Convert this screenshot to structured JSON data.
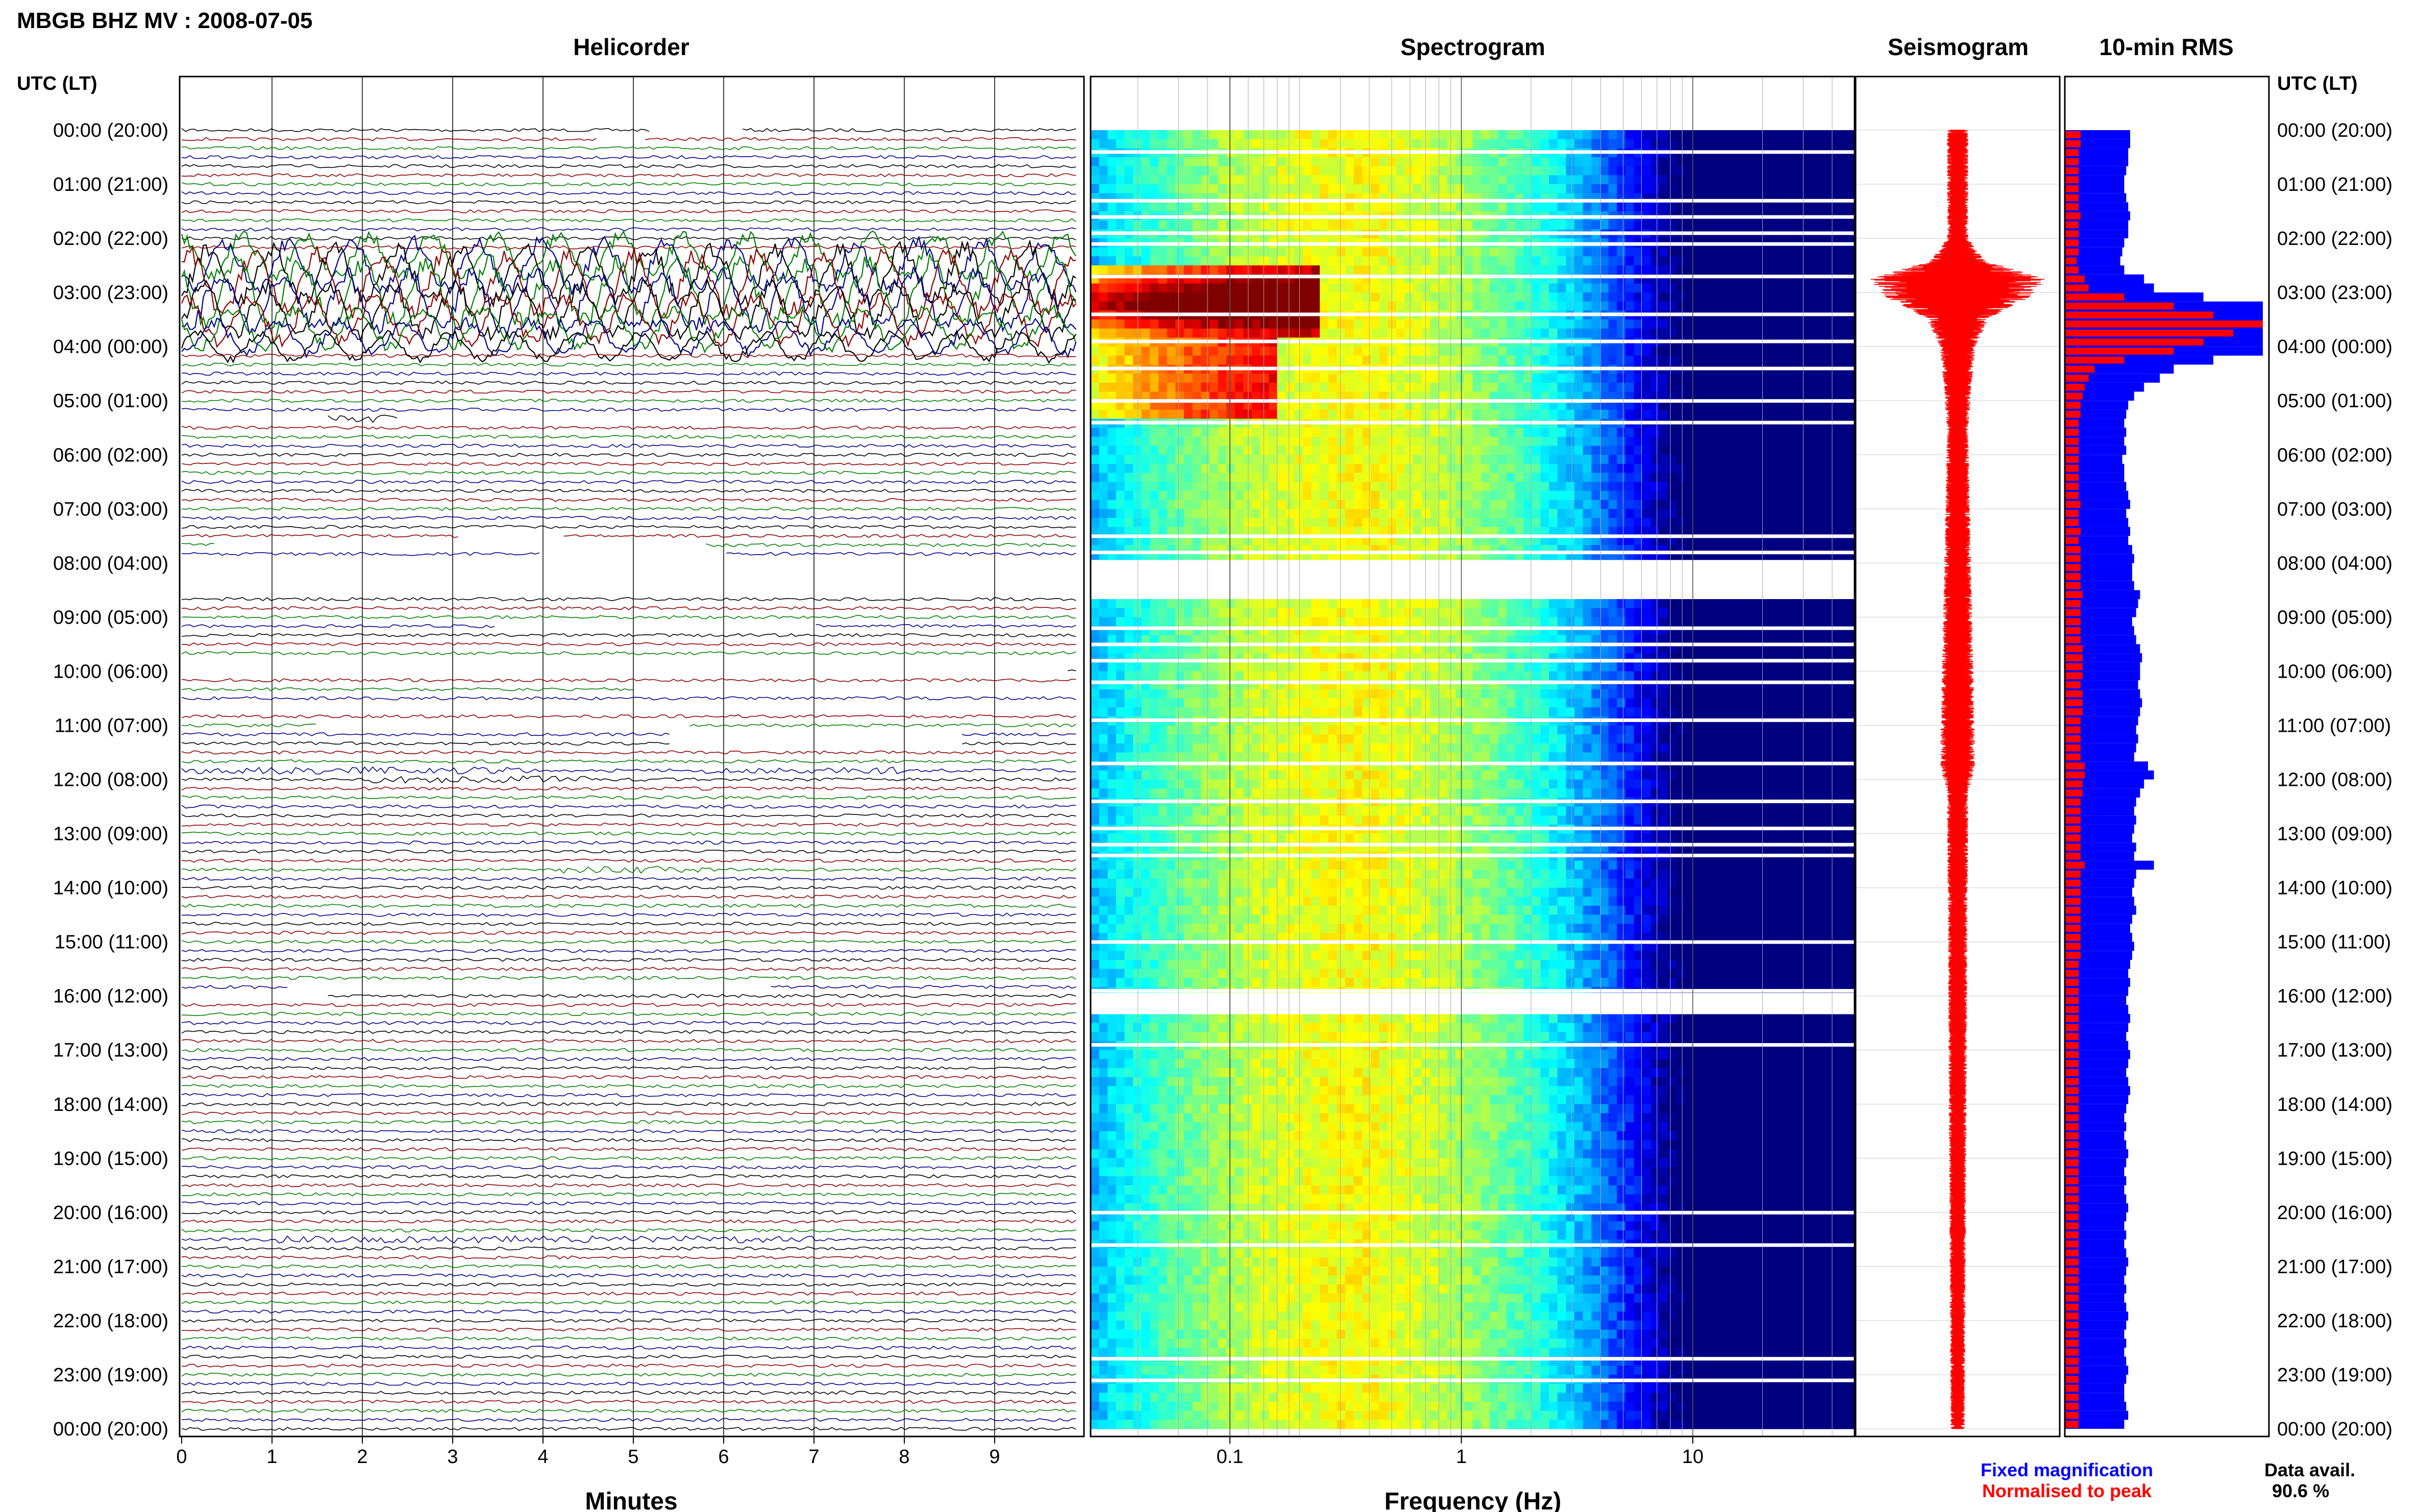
{
  "header": {
    "title": "MBGB BHZ MV : 2008-07-05"
  },
  "colors": {
    "helicorder_traces": [
      "#000000",
      "#8b0000",
      "#007f00",
      "#00008b"
    ],
    "rms_fixed": "#0000ff",
    "rms_normalised": "#ff0000",
    "seismogram": "#ff0000"
  },
  "axis_labels": {
    "left_header": "UTC (LT)",
    "right_header": "UTC (LT)",
    "time_ticks": [
      "00:00 (20:00)",
      "01:00 (21:00)",
      "02:00 (22:00)",
      "03:00 (23:00)",
      "04:00 (00:00)",
      "05:00 (01:00)",
      "06:00 (02:00)",
      "07:00 (03:00)",
      "08:00 (04:00)",
      "09:00 (05:00)",
      "10:00 (06:00)",
      "11:00 (07:00)",
      "12:00 (08:00)",
      "13:00 (09:00)",
      "14:00 (10:00)",
      "15:00 (11:00)",
      "16:00 (12:00)",
      "17:00 (13:00)",
      "18:00 (14:00)",
      "19:00 (15:00)",
      "20:00 (16:00)",
      "21:00 (17:00)",
      "22:00 (18:00)",
      "23:00 (19:00)",
      "00:00 (20:00)"
    ]
  },
  "panels": {
    "helicorder": {
      "title": "Helicorder",
      "xlabel": "Minutes",
      "ticks": [
        "0",
        "1",
        "2",
        "3",
        "4",
        "5",
        "6",
        "7",
        "8",
        "9"
      ]
    },
    "spectrogram": {
      "title": "Spectrogram",
      "xlabel": "Frequency (Hz)",
      "ticks": [
        "0.1",
        "1",
        "10"
      ]
    },
    "seismogram": {
      "title": "Seismogram"
    },
    "rms": {
      "title": "10-min RMS"
    }
  },
  "legend": {
    "fixed": "Fixed magnification",
    "normalised": "Normalised to peak"
  },
  "data_availability": {
    "label": "Data avail.",
    "value": "90.6 %"
  },
  "chart_data": [
    {
      "type": "line",
      "name": "helicorder",
      "title": "Helicorder",
      "xlabel": "Minutes",
      "xlim": [
        0,
        10
      ],
      "rows_per_hour": 6,
      "hours": 24,
      "active_hours": [
        2.25,
        4.0
      ],
      "gaps": [
        {
          "hour": 0.0,
          "from_min": 5.2,
          "to_min": 6.2
        },
        {
          "hour": 0.17,
          "from_min": 4.6,
          "to_min": 5.1
        },
        {
          "hour": 5.33,
          "from_min": 0,
          "to_min": 1.6
        },
        {
          "hour": 5.33,
          "from_min": 2.4,
          "to_min": 10
        },
        {
          "hour": 7.5,
          "from_min": 3.1,
          "to_min": 4.2
        },
        {
          "hour": 7.67,
          "from_min": 0.4,
          "to_min": 5.8
        },
        {
          "hour": 7.83,
          "from_min": 4.0,
          "to_min": 6.0
        },
        {
          "hour": 8.0,
          "from_min": 0,
          "to_min": 10
        },
        {
          "hour": 8.17,
          "from_min": 0,
          "to_min": 10
        },
        {
          "hour": 8.33,
          "from_min": 0,
          "to_min": 10
        },
        {
          "hour": 8.5,
          "from_min": 0,
          "to_min": 10
        },
        {
          "hour": 9.17,
          "from_min": 3.5,
          "to_min": 7.0
        },
        {
          "hour": 9.83,
          "from_min": 0,
          "to_min": 10
        },
        {
          "hour": 10.0,
          "from_min": 0,
          "to_min": 9.8
        },
        {
          "hour": 10.33,
          "from_min": 5.0,
          "to_min": 10
        },
        {
          "hour": 10.67,
          "from_min": 0,
          "to_min": 10
        },
        {
          "hour": 11.0,
          "from_min": 1.5,
          "to_min": 5.6
        },
        {
          "hour": 11.17,
          "from_min": 5.4,
          "to_min": 8.6
        },
        {
          "hour": 11.33,
          "from_min": 5.4,
          "to_min": 8.6
        },
        {
          "hour": 15.83,
          "from_min": 1.2,
          "to_min": 6.5
        },
        {
          "hour": 16.0,
          "from_min": 0,
          "to_min": 1.6
        }
      ],
      "events": [
        {
          "hour": 5.33,
          "from_min": 1.6,
          "to_min": 2.4
        },
        {
          "hour": 11.83,
          "from_min": 0,
          "to_min": 4.0
        },
        {
          "hour": 11.83,
          "from_min": 5.8,
          "to_min": 8.0
        },
        {
          "hour": 12.0,
          "from_min": 2.0,
          "to_min": 4.5
        },
        {
          "hour": 13.67,
          "from_min": 4.1,
          "to_min": 5.9
        },
        {
          "hour": 20.5,
          "from_min": 1.0,
          "to_min": 7.0
        }
      ]
    },
    {
      "type": "heatmap",
      "name": "spectrogram",
      "title": "Spectrogram",
      "xlabel": "Frequency (Hz)",
      "x_scale": "log",
      "xlim": [
        0.025,
        50
      ],
      "ylim_hours": [
        0,
        24
      ],
      "colormap": "jet",
      "peak_freq_hz": 0.4,
      "strong_low_freq_hours": [
        2.5,
        3.8
      ],
      "missing_rows_hours": [
        0.4,
        1.3,
        1.6,
        1.9,
        2.1,
        2.7,
        3.4,
        3.9,
        4.4,
        5.0,
        5.4,
        7.5,
        7.8,
        8.1,
        8.6,
        9.2,
        9.5,
        9.8,
        10.2,
        10.9,
        11.7,
        12.4,
        12.9,
        13.2,
        13.4,
        15.0,
        15.9,
        16.3,
        16.9,
        20.0,
        20.6,
        22.7,
        23.1
      ]
    },
    {
      "type": "line",
      "name": "seismogram",
      "title": "Seismogram",
      "ylim_hours": [
        0,
        24
      ],
      "amplitude_profile": [
        {
          "hour": 0,
          "amp": 0.12
        },
        {
          "hour": 2.0,
          "amp": 0.12
        },
        {
          "hour": 2.4,
          "amp": 0.3
        },
        {
          "hour": 2.75,
          "amp": 1.0
        },
        {
          "hour": 3.1,
          "amp": 0.8
        },
        {
          "hour": 3.5,
          "amp": 0.35
        },
        {
          "hour": 4.0,
          "amp": 0.2
        },
        {
          "hour": 5.5,
          "amp": 0.12
        },
        {
          "hour": 11.8,
          "amp": 0.2
        },
        {
          "hour": 12.2,
          "amp": 0.12
        },
        {
          "hour": 24,
          "amp": 0.08
        }
      ]
    },
    {
      "type": "bar",
      "name": "rms",
      "title": "10-min RMS",
      "orientation": "horizontal",
      "ylim_hours": [
        0,
        24
      ],
      "series": [
        {
          "name": "Fixed magnification",
          "values": [
            0.33,
            0.33,
            0.32,
            0.32,
            0.31,
            0.3,
            0.3,
            0.31,
            0.32,
            0.33,
            0.32,
            0.32,
            0.3,
            0.29,
            0.28,
            0.3,
            0.4,
            0.45,
            0.7,
            1.0,
            1.0,
            1.0,
            1.0,
            1.0,
            1.0,
            0.75,
            0.55,
            0.48,
            0.4,
            0.35,
            0.32,
            0.31,
            0.3,
            0.31,
            0.3,
            0.31,
            0.29,
            0.3,
            0.3,
            0.31,
            0.32,
            0.33,
            0.31,
            0.32,
            0.33,
            0.32,
            0.34,
            0.35,
            0.34,
            0.34,
            0.35,
            0.38,
            0.37,
            0.36,
            0.34,
            0.35,
            0.36,
            0.38,
            0.39,
            0.38,
            0.38,
            0.37,
            0.38,
            0.39,
            0.38,
            0.37,
            0.36,
            0.37,
            0.36,
            0.35,
            0.42,
            0.45,
            0.4,
            0.38,
            0.36,
            0.35,
            0.36,
            0.35,
            0.34,
            0.36,
            0.35,
            0.45,
            0.36,
            0.35,
            0.34,
            0.35,
            0.36,
            0.34,
            0.33,
            0.34,
            0.35,
            0.34,
            0.33,
            0.32,
            0.33,
            0.32,
            0.31,
            0.32,
            0.33,
            0.32,
            0.31,
            0.32,
            0.33,
            0.32,
            0.31,
            0.32,
            0.33,
            0.32,
            0.31,
            0.3,
            0.31,
            0.3,
            0.31,
            0.32,
            0.31,
            0.3,
            0.31,
            0.3,
            0.31,
            0.32,
            0.31,
            0.3,
            0.31,
            0.3,
            0.31,
            0.32,
            0.31,
            0.3,
            0.31,
            0.3,
            0.31,
            0.32,
            0.31,
            0.3,
            0.31,
            0.3,
            0.31,
            0.32,
            0.31,
            0.3,
            0.3,
            0.31,
            0.32,
            0.3
          ]
        },
        {
          "name": "Normalised to peak",
          "values": [
            0.08,
            0.08,
            0.07,
            0.07,
            0.07,
            0.07,
            0.07,
            0.07,
            0.07,
            0.08,
            0.07,
            0.07,
            0.07,
            0.07,
            0.06,
            0.07,
            0.1,
            0.12,
            0.3,
            0.55,
            0.75,
            1.0,
            0.85,
            0.7,
            0.55,
            0.3,
            0.15,
            0.12,
            0.1,
            0.09,
            0.08,
            0.08,
            0.07,
            0.07,
            0.07,
            0.07,
            0.07,
            0.07,
            0.07,
            0.07,
            0.07,
            0.08,
            0.07,
            0.07,
            0.08,
            0.07,
            0.08,
            0.08,
            0.08,
            0.08,
            0.08,
            0.09,
            0.08,
            0.08,
            0.08,
            0.08,
            0.08,
            0.09,
            0.09,
            0.09,
            0.09,
            0.08,
            0.09,
            0.09,
            0.09,
            0.08,
            0.08,
            0.08,
            0.08,
            0.08,
            0.1,
            0.1,
            0.09,
            0.09,
            0.08,
            0.08,
            0.08,
            0.08,
            0.08,
            0.08,
            0.08,
            0.1,
            0.08,
            0.08,
            0.08,
            0.08,
            0.08,
            0.08,
            0.08,
            0.08,
            0.08,
            0.08,
            0.07,
            0.07,
            0.07,
            0.07,
            0.07,
            0.07,
            0.07,
            0.07,
            0.07,
            0.07,
            0.07,
            0.07,
            0.07,
            0.07,
            0.07,
            0.07,
            0.07,
            0.07,
            0.07,
            0.07,
            0.07,
            0.07,
            0.07,
            0.07,
            0.07,
            0.07,
            0.07,
            0.07,
            0.07,
            0.07,
            0.07,
            0.07,
            0.07,
            0.07,
            0.07,
            0.07,
            0.07,
            0.07,
            0.07,
            0.07,
            0.07,
            0.07,
            0.07,
            0.07,
            0.07,
            0.07,
            0.07,
            0.07,
            0.07,
            0.07,
            0.07,
            0.07
          ]
        }
      ]
    }
  ]
}
